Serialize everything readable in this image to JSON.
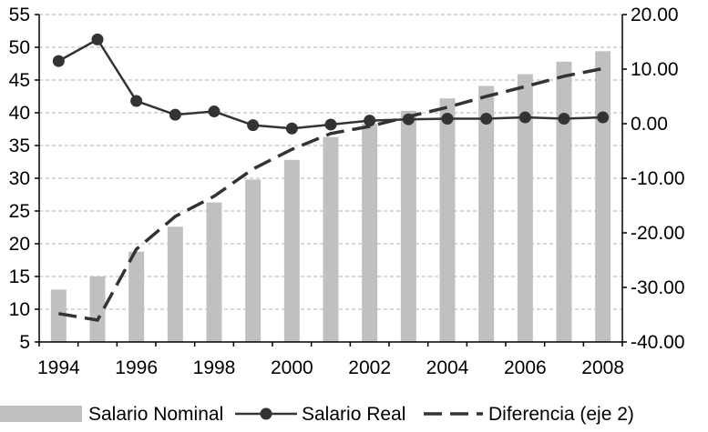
{
  "chart_data": {
    "type": "bar",
    "categories": [
      "1994",
      "1995",
      "1996",
      "1997",
      "1998",
      "1999",
      "2000",
      "2001",
      "2002",
      "2003",
      "2004",
      "2005",
      "2006",
      "2007",
      "2008"
    ],
    "x_tick_labels": [
      "1994",
      "1996",
      "1998",
      "2000",
      "2002",
      "2004",
      "2006",
      "2008"
    ],
    "y_left": {
      "range": [
        5,
        55
      ],
      "ticks": [
        5,
        10,
        15,
        20,
        25,
        30,
        35,
        40,
        45,
        50,
        55
      ],
      "tick_labels": [
        "5",
        "10",
        "15",
        "20",
        "25",
        "30",
        "35",
        "40",
        "45",
        "50",
        "55"
      ]
    },
    "y_right": {
      "range": [
        -40,
        20
      ],
      "ticks": [
        -40,
        -30,
        -20,
        -10,
        0,
        10,
        20
      ],
      "tick_labels": [
        "-40.00",
        "-30.00",
        "-20.00",
        "-10.00",
        "0.00",
        "10.00",
        "20.00"
      ]
    },
    "grid": "horizontal dashed",
    "legend_position": "bottom",
    "series": [
      {
        "name": "Salario Nominal",
        "type": "bar",
        "axis": "left",
        "color": "#c0c0c0",
        "values": [
          13.0,
          15.0,
          18.8,
          22.6,
          26.3,
          29.8,
          32.8,
          36.3,
          38.3,
          40.3,
          42.2,
          44.1,
          45.9,
          47.8,
          49.4
        ]
      },
      {
        "name": "Salario Real",
        "type": "line-markers",
        "axis": "left",
        "color": "#333333",
        "values": [
          47.9,
          51.2,
          41.8,
          39.7,
          40.2,
          38.1,
          37.6,
          38.2,
          38.8,
          39.0,
          39.1,
          39.1,
          39.3,
          39.1,
          39.3
        ]
      },
      {
        "name": "Diferencia (eje 2)",
        "type": "line-dashed",
        "axis": "right",
        "color": "#333333",
        "values": [
          -34.8,
          -36.0,
          -23.0,
          -17.0,
          -13.3,
          -8.3,
          -4.7,
          -1.8,
          -0.5,
          1.3,
          3.0,
          5.0,
          6.8,
          8.7,
          10.1
        ]
      }
    ]
  }
}
